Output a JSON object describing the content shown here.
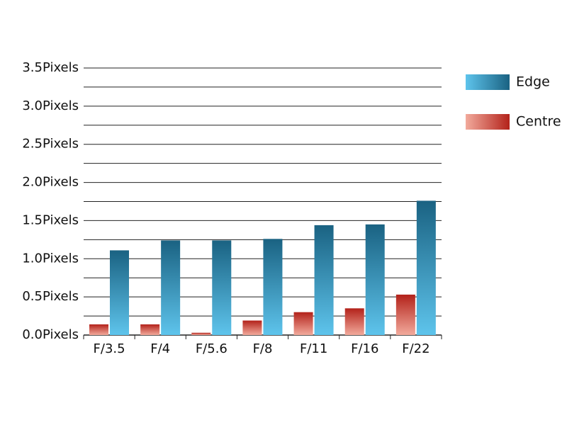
{
  "chart_data": {
    "type": "bar",
    "categories": [
      "F/3.5",
      "F/4",
      "F/5.6",
      "F/8",
      "F/11",
      "F/16",
      "F/22"
    ],
    "series": [
      {
        "name": "Centre",
        "color": "#b3221a",
        "color_light": "#f2aa9c",
        "values": [
          0.14,
          0.14,
          0.03,
          0.19,
          0.3,
          0.35,
          0.53
        ]
      },
      {
        "name": "Edge",
        "color": "#1a6282",
        "color_light": "#5ec4ec",
        "values": [
          1.11,
          1.24,
          1.24,
          1.26,
          1.44,
          1.45,
          1.76
        ]
      }
    ],
    "ylim": [
      0,
      3.5
    ],
    "yticks": [
      {
        "value": 0,
        "label": "0.0Pixels"
      },
      {
        "value": 0.5,
        "label": "0.5Pixels"
      },
      {
        "value": 1,
        "label": "1.0Pixels"
      },
      {
        "value": 1.5,
        "label": "1.5Pixels"
      },
      {
        "value": 2,
        "label": "2.0Pixels"
      },
      {
        "value": 2.5,
        "label": "2.5Pixels"
      },
      {
        "value": 3,
        "label": "3.0Pixels"
      },
      {
        "value": 3.5,
        "label": "3.5Pixels"
      }
    ],
    "minor_yticks": [
      0.25,
      0.75,
      1.25,
      1.75,
      2.25,
      2.75,
      3.25
    ],
    "grid": true
  }
}
